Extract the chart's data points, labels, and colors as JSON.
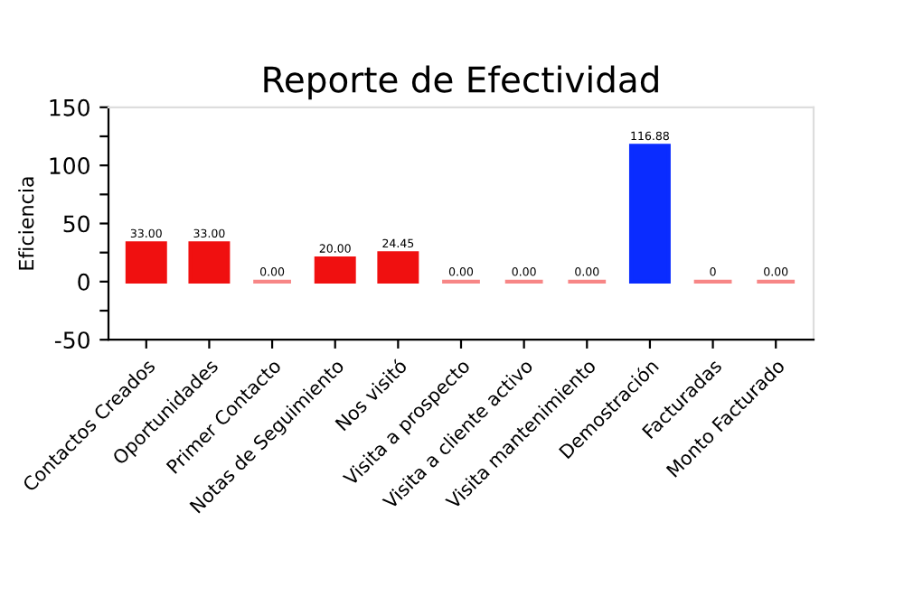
{
  "chart_data": {
    "type": "bar",
    "title": "Reporte de Efectividad",
    "ylabel": "Eficiencia",
    "categories": [
      "Contactos Creados",
      "Oportunidades",
      "Primer Contacto",
      "Notas de Seguimiento",
      "Nos visitó",
      "Visita a prospecto",
      "Visita a cliente activo",
      "Visita mantenimiento",
      "Demostración",
      "Facturadas",
      "Monto Facturado"
    ],
    "values": [
      33.0,
      33.0,
      0,
      20.0,
      24.45,
      0,
      0,
      0,
      116.88,
      0,
      0
    ],
    "value_labels": [
      "33.00",
      "33.00",
      "0.00",
      "20.00",
      "24.45",
      "0.00",
      "0.00",
      "0.00",
      "116.88",
      "0",
      "0.00"
    ],
    "colors": [
      "#f01010",
      "#f01010",
      "#f01010",
      "#f01010",
      "#f01010",
      "#f01010",
      "#f01010",
      "#f01010",
      "#0a2cff",
      "#f01010",
      "#f01010"
    ],
    "ylim": [
      -50,
      150
    ],
    "yticks": [
      -50,
      {
        "value": -25,
        "label": null
      },
      0,
      {
        "value": 25,
        "label": null
      },
      50,
      {
        "value": 75,
        "label": null
      },
      100,
      {
        "value": 125,
        "label": null
      },
      150
    ],
    "grid": false,
    "legend": false
  }
}
